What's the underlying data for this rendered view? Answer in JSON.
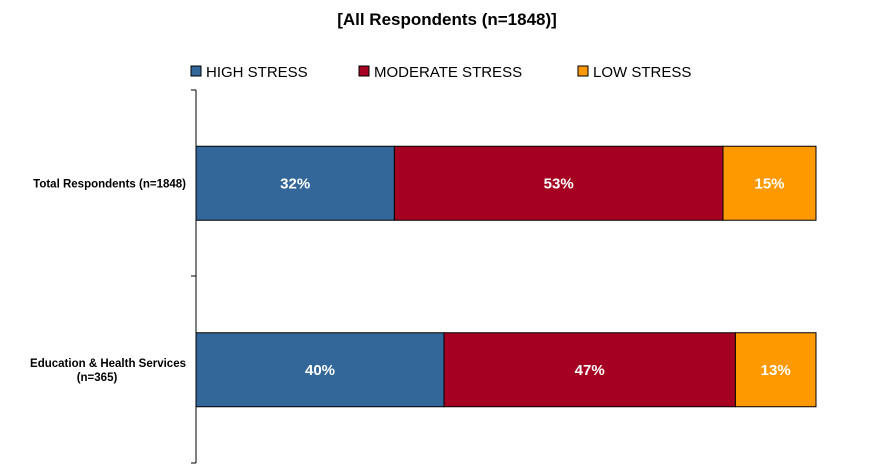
{
  "chart_data": {
    "type": "bar",
    "orientation": "horizontal",
    "stacked": true,
    "title": "[All Respondents (n=1848)]",
    "categories": [
      [
        "Total Respondents (n=1848)"
      ],
      [
        "Education & Health Services",
        "(n=365)"
      ]
    ],
    "series": [
      {
        "name": "HIGH STRESS",
        "color": "#336699",
        "values": [
          32,
          40
        ],
        "labels": [
          "32%",
          "40%"
        ]
      },
      {
        "name": "MODERATE STRESS",
        "color": "#A50021",
        "values": [
          53,
          47
        ],
        "labels": [
          "53%",
          "47%"
        ]
      },
      {
        "name": "LOW STRESS",
        "color": "#FF9900",
        "values": [
          15,
          13
        ],
        "labels": [
          "15%",
          "13%"
        ]
      }
    ],
    "xlim": [
      0,
      100
    ],
    "grid": false,
    "legend_position": "top"
  }
}
